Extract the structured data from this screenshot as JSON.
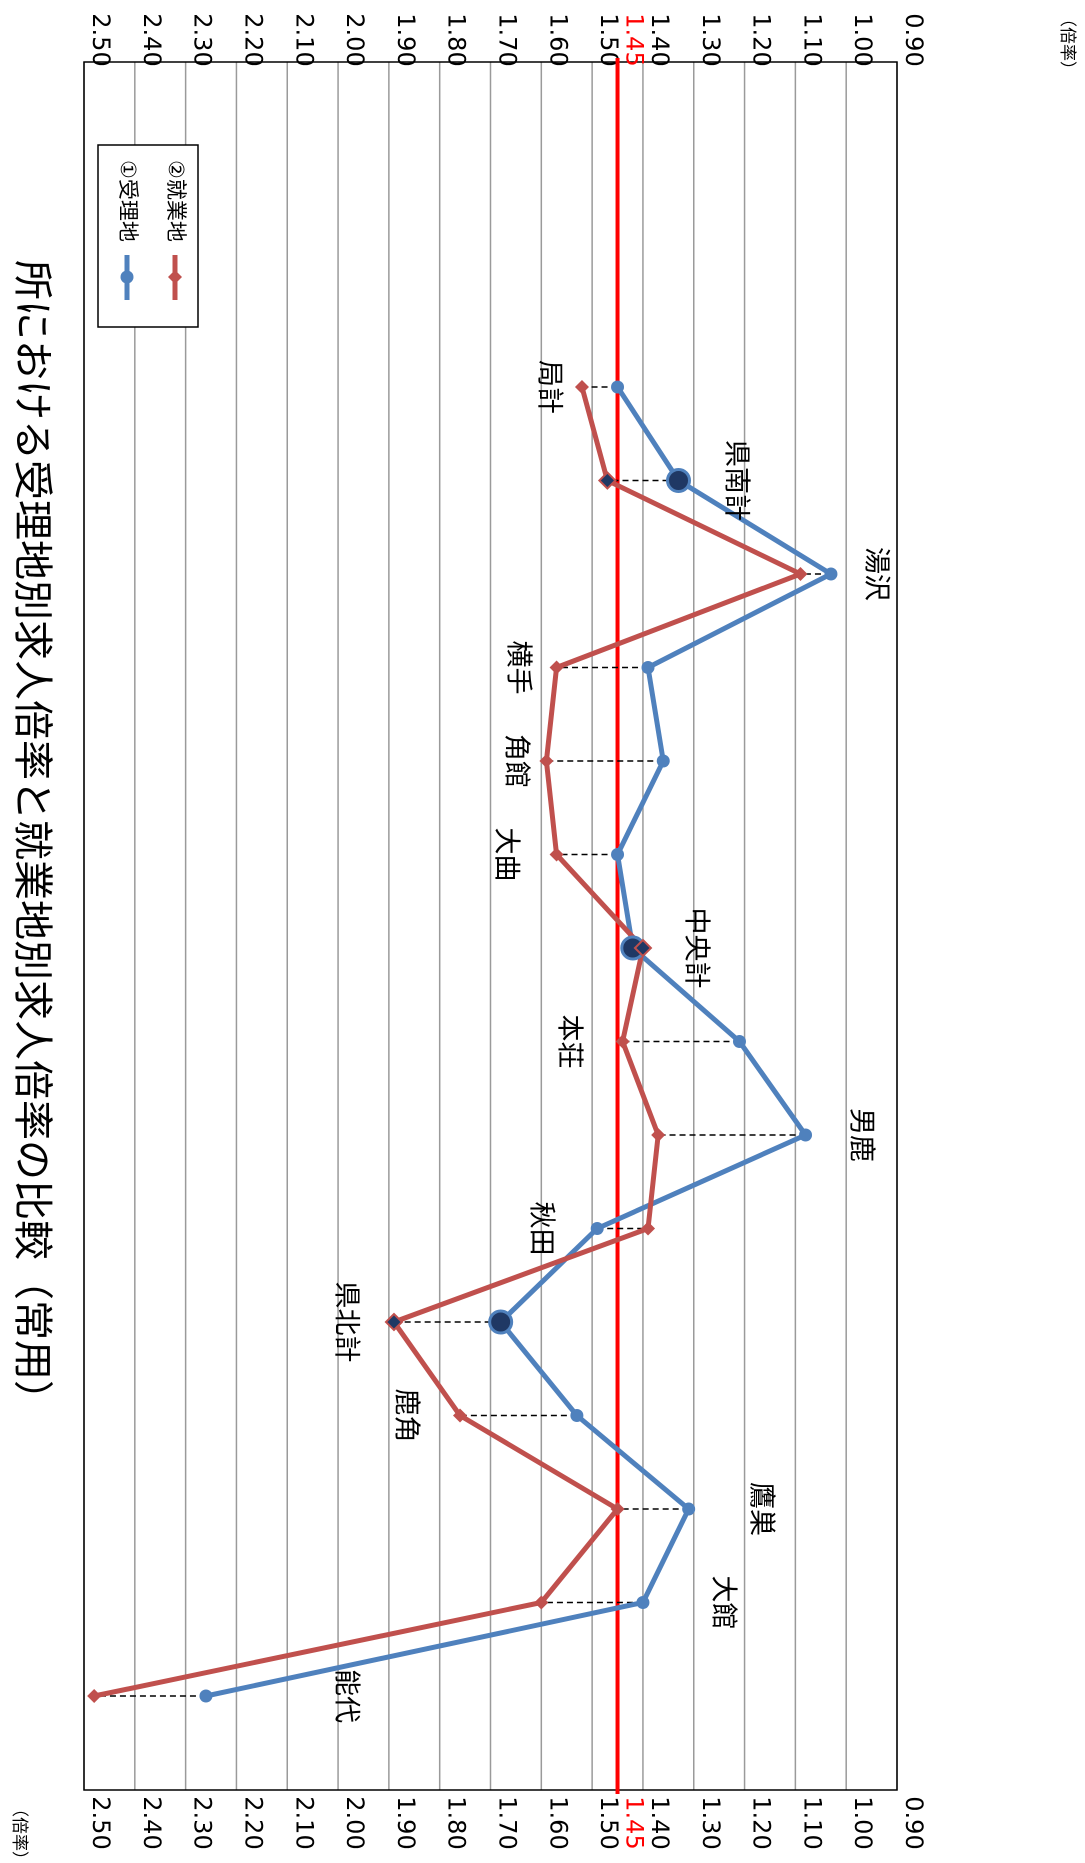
{
  "chart_data": {
    "type": "line",
    "title": "所における受理地別求人倍率と就業地別求人倍率の比較（常用）",
    "unit_label": "（倍率）",
    "categories": [
      "能代",
      "大館",
      "鷹巣",
      "鹿角",
      "県北計",
      "秋田",
      "男鹿",
      "本荘",
      "中央計",
      "大曲",
      "角館",
      "横手",
      "湯沢",
      "県南計",
      "局計"
    ],
    "series": [
      {
        "name": "①受理地",
        "color": "#4F81BD",
        "values": [
          2.26,
          1.4,
          1.31,
          1.53,
          1.68,
          1.49,
          1.08,
          1.21,
          1.42,
          1.45,
          1.36,
          1.39,
          1.03,
          1.33,
          1.45
        ]
      },
      {
        "name": "②就業地",
        "color": "#C0504D",
        "values": [
          2.48,
          1.6,
          1.45,
          1.76,
          1.89,
          1.39,
          1.37,
          1.44,
          1.4,
          1.57,
          1.59,
          1.57,
          1.09,
          1.47,
          1.52
        ]
      }
    ],
    "emphasized_points": [
      4,
      8,
      13
    ],
    "ylim": [
      0.9,
      2.5
    ],
    "yticks": [
      "0.90",
      "1.00",
      "1.10",
      "1.20",
      "1.30",
      "1.40",
      "1.50",
      "1.60",
      "1.70",
      "1.80",
      "1.90",
      "2.00",
      "2.10",
      "2.20",
      "2.30",
      "2.40",
      "2.50"
    ],
    "reference_line": {
      "value": 1.45,
      "label": "1.45",
      "color": "#FF0000"
    },
    "grid": true,
    "legend_position": "top-right",
    "orientation": "rotated-90-clockwise"
  }
}
